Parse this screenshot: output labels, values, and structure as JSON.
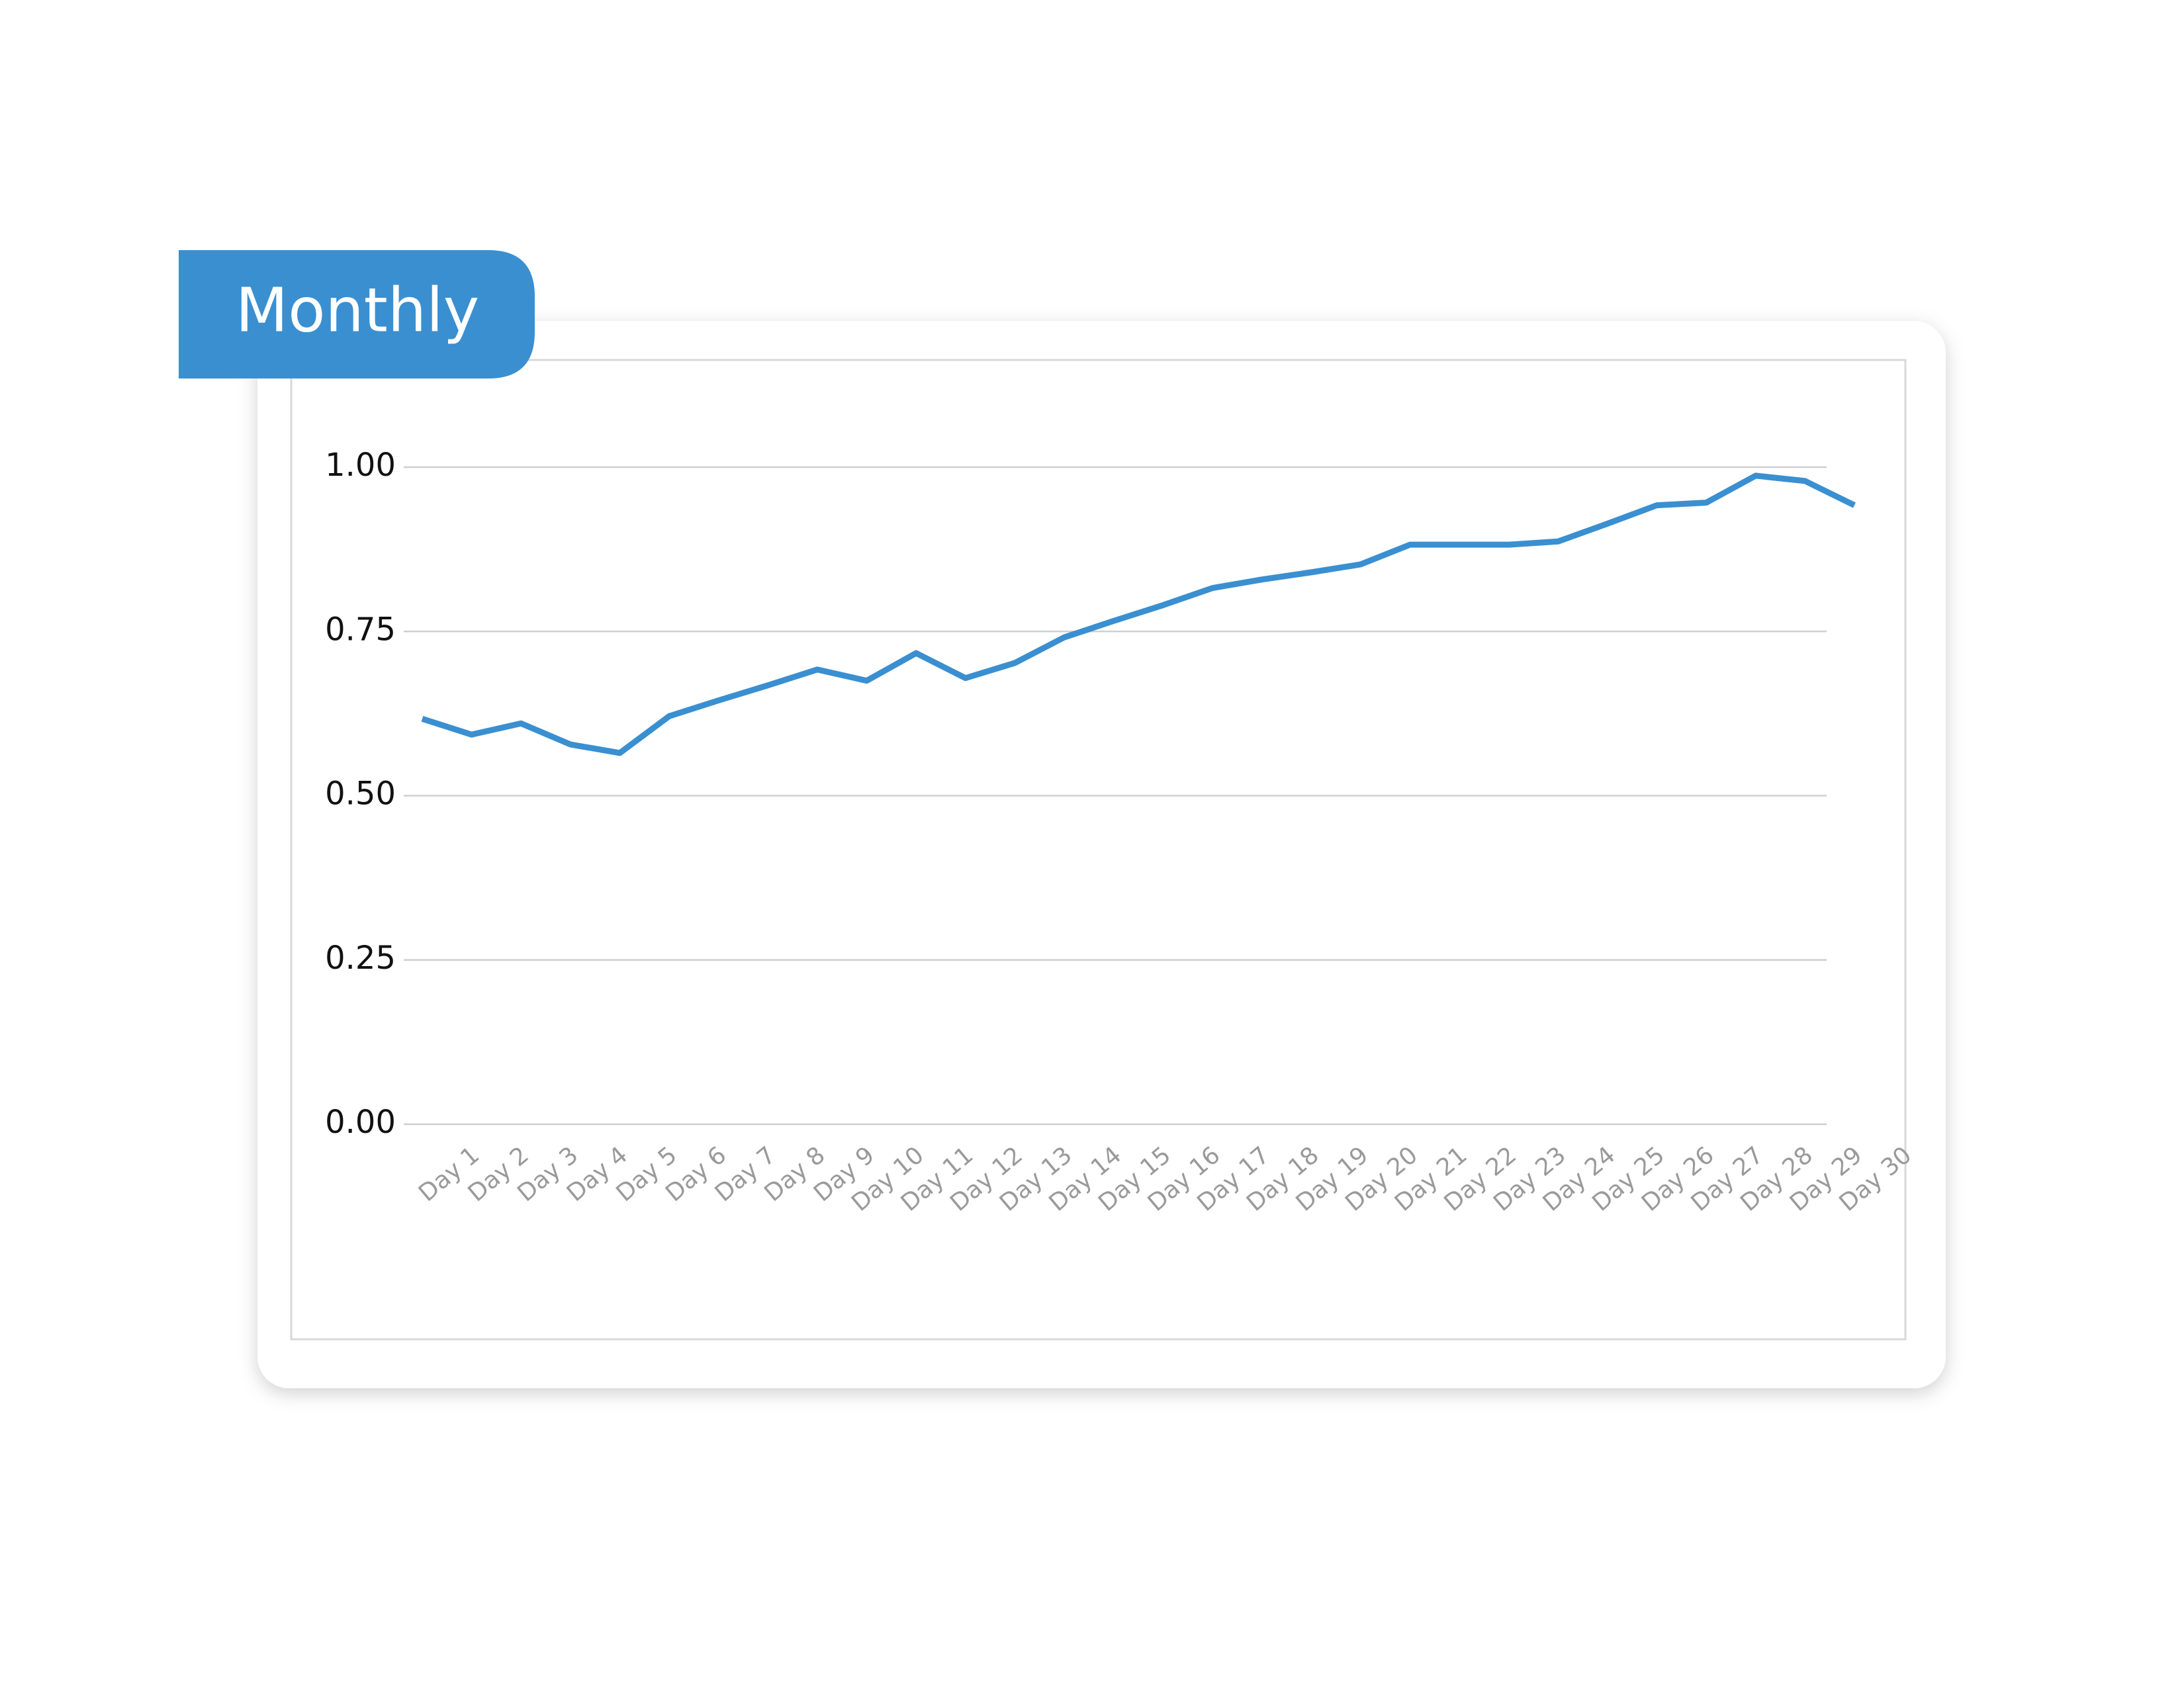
{
  "chart_data": {
    "type": "line",
    "title": "Monthly",
    "categories": [
      "Day 1",
      "Day 2",
      "Day 3",
      "Day 4",
      "Day 5",
      "Day 6",
      "Day 7",
      "Day 8",
      "Day 9",
      "Day 10",
      "Day 11",
      "Day 12",
      "Day 13",
      "Day 14",
      "Day 15",
      "Day 16",
      "Day 17",
      "Day 18",
      "Day 19",
      "Day 20",
      "Day 21",
      "Day 22",
      "Day 23",
      "Day 24",
      "Day 25",
      "Day 26",
      "Day 27",
      "Day 28",
      "Day 29",
      "Day 30"
    ],
    "values": [
      0.617,
      0.593,
      0.61,
      0.578,
      0.565,
      0.621,
      0.645,
      0.668,
      0.692,
      0.675,
      0.717,
      0.679,
      0.702,
      0.741,
      0.766,
      0.79,
      0.816,
      0.829,
      0.84,
      0.852,
      0.882,
      0.882,
      0.882,
      0.887,
      0.914,
      0.942,
      0.946,
      0.987,
      0.979,
      0.942
    ],
    "color": "#3a8fd1",
    "ylim": [
      0,
      1
    ],
    "yticks": [
      {
        "value": 0,
        "label": "0.00"
      },
      0.25,
      {
        "value": 0.5,
        "label": "0.50"
      },
      0.75,
      {
        "value": 1,
        "label": "1.00"
      }
    ],
    "grid": true
  }
}
